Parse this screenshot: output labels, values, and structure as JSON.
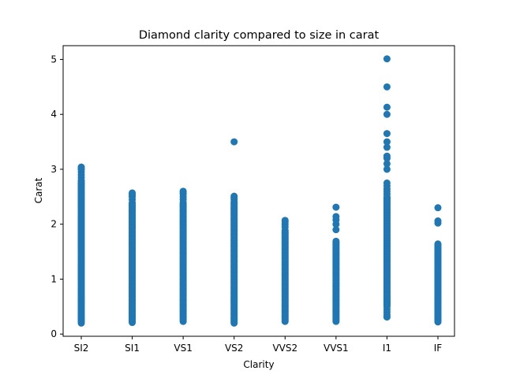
{
  "chart_data": {
    "type": "scatter",
    "title": "Diamond clarity compared to size in carat",
    "xlabel": "Clarity",
    "ylabel": "Carat",
    "categories": [
      "SI2",
      "SI1",
      "VS1",
      "VS2",
      "VVS2",
      "VVS1",
      "I1",
      "IF"
    ],
    "ylim": [
      -0.04,
      5.25
    ],
    "yticks": [
      0,
      1,
      2,
      3,
      4,
      5
    ],
    "grid": false,
    "marker_color": "#1f77b4",
    "series": [
      {
        "category": "SI2",
        "dense_range": [
          0.2,
          2.8
        ],
        "points": [
          2.85,
          2.9,
          2.95,
          3.0,
          3.01,
          3.04
        ]
      },
      {
        "category": "SI1",
        "dense_range": [
          0.21,
          2.4
        ],
        "points": [
          2.45,
          2.5,
          2.52,
          2.55,
          2.57
        ]
      },
      {
        "category": "VS1",
        "dense_range": [
          0.23,
          2.4
        ],
        "points": [
          2.45,
          2.5,
          2.55,
          2.58,
          2.6
        ]
      },
      {
        "category": "VS2",
        "dense_range": [
          0.2,
          2.4
        ],
        "points": [
          2.45,
          2.48,
          2.51,
          3.5
        ]
      },
      {
        "category": "VVS2",
        "dense_range": [
          0.23,
          1.9
        ],
        "points": [
          1.95,
          2.0,
          2.04,
          2.07
        ]
      },
      {
        "category": "VVS1",
        "dense_range": [
          0.23,
          1.7
        ],
        "points": [
          1.9,
          2.0,
          2.08,
          2.14,
          2.31
        ]
      },
      {
        "category": "I1",
        "dense_range": [
          0.5,
          2.5
        ],
        "points": [
          0.31,
          0.35,
          0.4,
          0.45,
          0.55,
          0.6,
          0.7,
          2.55,
          2.6,
          2.64,
          2.7,
          2.75,
          3.0,
          3.1,
          3.2,
          3.24,
          3.4,
          3.5,
          3.65,
          4.0,
          4.13,
          4.5,
          5.01
        ]
      },
      {
        "category": "IF",
        "dense_range": [
          0.22,
          1.65
        ],
        "points": [
          2.02,
          2.06,
          2.3
        ]
      }
    ]
  }
}
